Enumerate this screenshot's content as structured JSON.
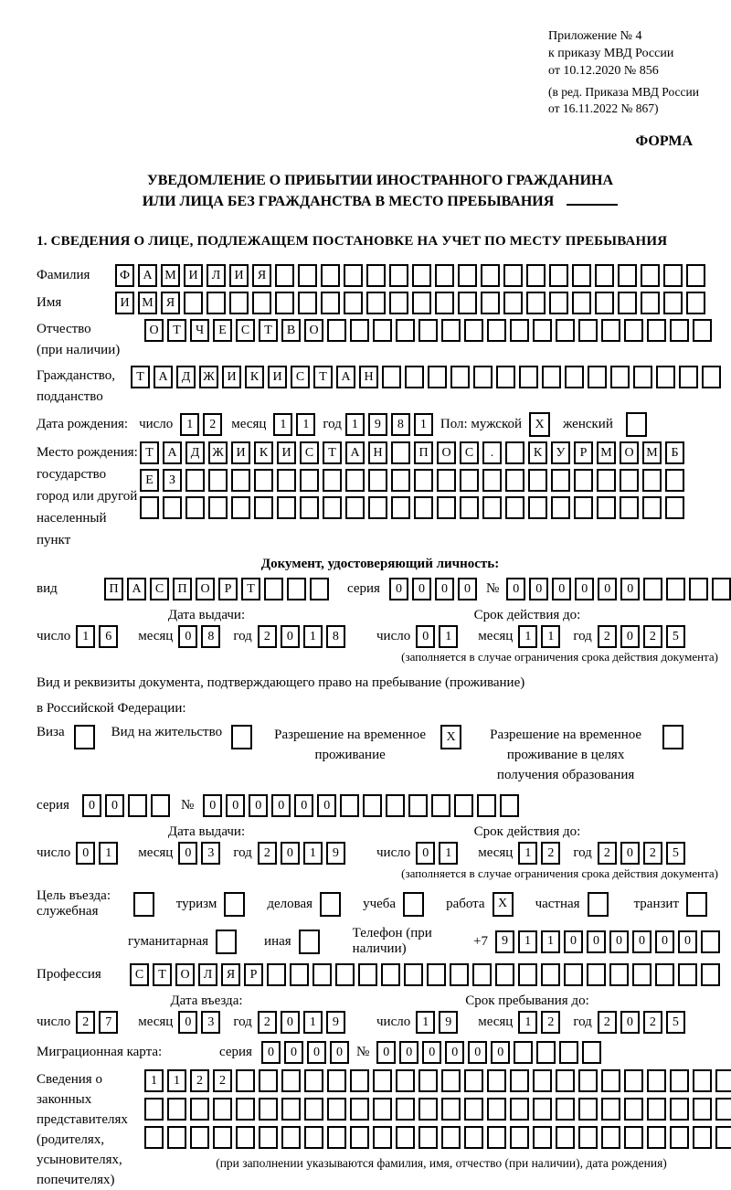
{
  "header": {
    "appendix_lines": [
      "Приложение № 4",
      "к приказу МВД России",
      "от 10.12.2020 № 856"
    ],
    "edition_lines": [
      "(в ред. Приказа МВД России",
      "от 16.11.2022 № 867)"
    ],
    "form_label": "ФОРМА"
  },
  "title": {
    "line1": "УВЕДОМЛЕНИЕ О ПРИБЫТИИ ИНОСТРАННОГО ГРАЖДАНИНА",
    "line2": "ИЛИ ЛИЦА БЕЗ ГРАЖДАНСТВА В МЕСТО ПРЕБЫВАНИЯ"
  },
  "section1_title": "1. СВЕДЕНИЯ О ЛИЦЕ, ПОДЛЕЖАЩЕМ ПОСТАНОВКЕ НА УЧЕТ ПО МЕСТУ ПРЕБЫВАНИЯ",
  "labels": {
    "surname": "Фамилия",
    "given_name": "Имя",
    "patronymic": "Отчество",
    "patronymic_note": "(при наличии)",
    "citizenship_1": "Гражданство,",
    "citizenship_2": "подданство",
    "birth_date": "Дата рождения:",
    "day": "число",
    "month": "месяц",
    "year": "год",
    "sex_male": "Пол: мужской",
    "sex_female": "женский",
    "birth_place": "Место рождения:",
    "birth_place_state": "государство",
    "birth_place_city_1": "город или другой",
    "birth_place_city_2": "населенный пункт",
    "identity_doc_header": "Документ, удостоверяющий личность:",
    "doc_kind": "вид",
    "series": "серия",
    "number_sign": "№",
    "issue_date": "Дата выдачи:",
    "valid_until": "Срок действия до:",
    "validity_note": "(заполняется в случае ограничения срока действия документа)",
    "right_doc_line1": "Вид и реквизиты документа, подтверждающего право на пребывание (проживание)",
    "right_doc_line2": "в Российской Федерации:",
    "visa": "Виза",
    "residence_permit": "Вид на жительство",
    "temp_residence": "Разрешение на временное проживание",
    "temp_residence_edu": "Разрешение на временное проживание в целях получения образования",
    "purpose": "Цель въезда: служебная",
    "purpose_tourism": "туризм",
    "purpose_business": "деловая",
    "purpose_study": "учеба",
    "purpose_work": "работа",
    "purpose_private": "частная",
    "purpose_transit": "транзит",
    "purpose_humanitarian": "гуманитарная",
    "purpose_other": "иная",
    "phone_label": "Телефон (при наличии)",
    "phone_prefix": "+7",
    "profession": "Профессия",
    "entry_date": "Дата въезда:",
    "stay_until": "Срок пребывания до:",
    "migration_card": "Миграционная карта:",
    "representatives": "Сведения о законных представителях (родителях, усыновителях, попечителях)",
    "representatives_note": "(при заполнении указываются фамилия, имя, отчество (при наличии), дата рождения)"
  },
  "grids": {
    "surname": {
      "cells": 26,
      "value": "ФАМИЛИЯ"
    },
    "given_name": {
      "cells": 26,
      "value": "ИМЯ"
    },
    "patronymic": {
      "cells": 25,
      "value": "ОТЧЕСТВО"
    },
    "citizenship": {
      "cells": 26,
      "value": "ТАДЖИКИСТАН"
    },
    "birth_day": {
      "cells": 2,
      "value": "12"
    },
    "birth_month": {
      "cells": 2,
      "value": "11"
    },
    "birth_year": {
      "cells": 4,
      "value": "1981"
    },
    "sex_male": {
      "cells": 1,
      "value": "X"
    },
    "sex_female": {
      "cells": 1,
      "value": ""
    },
    "birth_place_row1": {
      "cells": 24,
      "value": "ТАДЖИКИСТАН ПОС. КУРМОМБ"
    },
    "birth_place_row2": {
      "cells": 24,
      "value": "ЕЗ"
    },
    "birth_place_row3": {
      "cells": 24,
      "value": ""
    },
    "doc_kind": {
      "cells": 10,
      "value": "ПАСПОРТ"
    },
    "doc_series": {
      "cells": 4,
      "value": "0000"
    },
    "doc_number": {
      "cells": 11,
      "value": "000000"
    },
    "doc_issue_day": {
      "cells": 2,
      "value": "16"
    },
    "doc_issue_month": {
      "cells": 2,
      "value": "08"
    },
    "doc_issue_year": {
      "cells": 4,
      "value": "2018"
    },
    "doc_valid_day": {
      "cells": 2,
      "value": "01"
    },
    "doc_valid_month": {
      "cells": 2,
      "value": "11"
    },
    "doc_valid_year": {
      "cells": 4,
      "value": "2025"
    },
    "cb_visa": {
      "cells": 1,
      "value": ""
    },
    "cb_residence_permit": {
      "cells": 1,
      "value": ""
    },
    "cb_temp_residence": {
      "cells": 1,
      "value": "X"
    },
    "cb_temp_residence_edu": {
      "cells": 1,
      "value": ""
    },
    "permit_series": {
      "cells": 4,
      "value": "00"
    },
    "permit_number": {
      "cells": 14,
      "value": "000000"
    },
    "permit_issue_day": {
      "cells": 2,
      "value": "01"
    },
    "permit_issue_month": {
      "cells": 2,
      "value": "03"
    },
    "permit_issue_year": {
      "cells": 4,
      "value": "2019"
    },
    "permit_valid_day": {
      "cells": 2,
      "value": "01"
    },
    "permit_valid_month": {
      "cells": 2,
      "value": "12"
    },
    "permit_valid_year": {
      "cells": 4,
      "value": "2025"
    },
    "cb_official": {
      "cells": 1,
      "value": ""
    },
    "cb_tourism": {
      "cells": 1,
      "value": ""
    },
    "cb_business": {
      "cells": 1,
      "value": ""
    },
    "cb_study": {
      "cells": 1,
      "value": ""
    },
    "cb_work": {
      "cells": 1,
      "value": "X"
    },
    "cb_private": {
      "cells": 1,
      "value": ""
    },
    "cb_transit": {
      "cells": 1,
      "value": ""
    },
    "cb_humanitarian": {
      "cells": 1,
      "value": ""
    },
    "cb_other": {
      "cells": 1,
      "value": ""
    },
    "phone": {
      "cells": 10,
      "value": "911000000"
    },
    "profession": {
      "cells": 26,
      "value": "СТОЛЯР"
    },
    "entry_day": {
      "cells": 2,
      "value": "27"
    },
    "entry_month": {
      "cells": 2,
      "value": "03"
    },
    "entry_year": {
      "cells": 4,
      "value": "2019"
    },
    "stay_day": {
      "cells": 2,
      "value": "19"
    },
    "stay_month": {
      "cells": 2,
      "value": "12"
    },
    "stay_year": {
      "cells": 4,
      "value": "2025"
    },
    "migr_series": {
      "cells": 4,
      "value": "0000"
    },
    "migr_number": {
      "cells": 10,
      "value": "000000"
    },
    "repr_row1": {
      "cells": 26,
      "value": "1122"
    },
    "repr_row2": {
      "cells": 26,
      "value": ""
    },
    "repr_row3": {
      "cells": 26,
      "value": ""
    }
  }
}
